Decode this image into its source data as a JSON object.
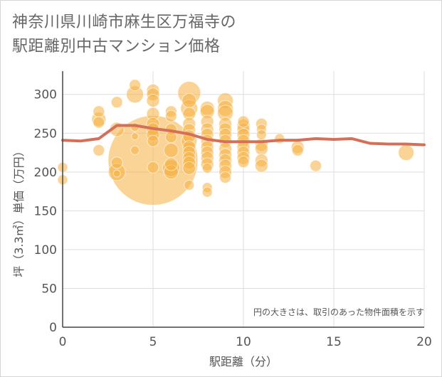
{
  "title_lines": [
    "神奈川県川崎市麻生区万福寺の",
    "駅距離別中古マンション価格"
  ],
  "chart_data": {
    "type": "scatter",
    "title": "神奈川県川崎市麻生区万福寺の駅距離別中古マンション価格",
    "xlabel": "駅距離（分）",
    "ylabel": "坪（3.3㎡）単価（万円）",
    "xlim": [
      0,
      20
    ],
    "ylim": [
      0,
      330
    ],
    "x_ticks": [
      0,
      5,
      10,
      15,
      20
    ],
    "y_ticks": [
      0,
      50,
      100,
      150,
      200,
      250,
      300
    ],
    "x_tick_labels": [
      "0",
      "5",
      "10",
      "15",
      "20"
    ],
    "y_tick_labels": [
      "0",
      "50",
      "100",
      "150",
      "200",
      "250",
      "300"
    ],
    "grid": true,
    "note": "円の大きさは、取引のあった物件面積を示す",
    "colors": {
      "bubble": "#f5b041",
      "line": "#d4705a",
      "grid": "#dddddd",
      "axis": "#444444"
    },
    "bubbles": [
      {
        "x": 0,
        "y": 206,
        "s": 7
      },
      {
        "x": 0,
        "y": 190,
        "s": 7
      },
      {
        "x": 2,
        "y": 278,
        "s": 8
      },
      {
        "x": 2,
        "y": 268,
        "s": 10
      },
      {
        "x": 2,
        "y": 264,
        "s": 8
      },
      {
        "x": 2,
        "y": 228,
        "s": 8
      },
      {
        "x": 3,
        "y": 290,
        "s": 8
      },
      {
        "x": 3,
        "y": 255,
        "s": 10
      },
      {
        "x": 3,
        "y": 212,
        "s": 8
      },
      {
        "x": 3,
        "y": 200,
        "s": 12
      },
      {
        "x": 3,
        "y": 198,
        "s": 5
      },
      {
        "x": 4,
        "y": 312,
        "s": 8
      },
      {
        "x": 4,
        "y": 300,
        "s": 12
      },
      {
        "x": 4,
        "y": 258,
        "s": 6
      },
      {
        "x": 4,
        "y": 246,
        "s": 5
      },
      {
        "x": 4,
        "y": 228,
        "s": 6
      },
      {
        "x": 5,
        "y": 305,
        "s": 9
      },
      {
        "x": 5,
        "y": 300,
        "s": 9
      },
      {
        "x": 5,
        "y": 292,
        "s": 9
      },
      {
        "x": 5,
        "y": 275,
        "s": 9
      },
      {
        "x": 5,
        "y": 262,
        "s": 9
      },
      {
        "x": 5,
        "y": 255,
        "s": 9
      },
      {
        "x": 5,
        "y": 248,
        "s": 9
      },
      {
        "x": 5,
        "y": 240,
        "s": 8
      },
      {
        "x": 5,
        "y": 206,
        "s": 8
      },
      {
        "x": 5,
        "y": 215,
        "s": 63
      },
      {
        "x": 6,
        "y": 278,
        "s": 8
      },
      {
        "x": 6,
        "y": 272,
        "s": 8
      },
      {
        "x": 6,
        "y": 255,
        "s": 8
      },
      {
        "x": 6,
        "y": 245,
        "s": 8
      },
      {
        "x": 6,
        "y": 228,
        "s": 10
      },
      {
        "x": 6,
        "y": 210,
        "s": 9
      },
      {
        "x": 6,
        "y": 205,
        "s": 12
      },
      {
        "x": 6,
        "y": 200,
        "s": 10
      },
      {
        "x": 7,
        "y": 302,
        "s": 16
      },
      {
        "x": 7,
        "y": 292,
        "s": 10
      },
      {
        "x": 7,
        "y": 282,
        "s": 12
      },
      {
        "x": 7,
        "y": 275,
        "s": 9
      },
      {
        "x": 7,
        "y": 262,
        "s": 9
      },
      {
        "x": 7,
        "y": 254,
        "s": 9
      },
      {
        "x": 7,
        "y": 246,
        "s": 9
      },
      {
        "x": 7,
        "y": 240,
        "s": 11
      },
      {
        "x": 7,
        "y": 232,
        "s": 9
      },
      {
        "x": 7,
        "y": 225,
        "s": 9
      },
      {
        "x": 7,
        "y": 218,
        "s": 9
      },
      {
        "x": 7,
        "y": 212,
        "s": 9
      },
      {
        "x": 7,
        "y": 205,
        "s": 9
      },
      {
        "x": 7,
        "y": 183,
        "s": 7
      },
      {
        "x": 8,
        "y": 282,
        "s": 10
      },
      {
        "x": 8,
        "y": 278,
        "s": 10
      },
      {
        "x": 8,
        "y": 265,
        "s": 9
      },
      {
        "x": 8,
        "y": 255,
        "s": 9
      },
      {
        "x": 8,
        "y": 248,
        "s": 9
      },
      {
        "x": 8,
        "y": 240,
        "s": 9
      },
      {
        "x": 8,
        "y": 232,
        "s": 9
      },
      {
        "x": 8,
        "y": 225,
        "s": 9
      },
      {
        "x": 8,
        "y": 218,
        "s": 9
      },
      {
        "x": 8,
        "y": 210,
        "s": 9
      },
      {
        "x": 8,
        "y": 205,
        "s": 7
      },
      {
        "x": 8,
        "y": 180,
        "s": 7
      },
      {
        "x": 8,
        "y": 174,
        "s": 7
      },
      {
        "x": 9,
        "y": 292,
        "s": 11
      },
      {
        "x": 9,
        "y": 282,
        "s": 11
      },
      {
        "x": 9,
        "y": 276,
        "s": 11
      },
      {
        "x": 9,
        "y": 262,
        "s": 9
      },
      {
        "x": 9,
        "y": 255,
        "s": 9
      },
      {
        "x": 9,
        "y": 248,
        "s": 9
      },
      {
        "x": 9,
        "y": 240,
        "s": 9
      },
      {
        "x": 9,
        "y": 230,
        "s": 9
      },
      {
        "x": 9,
        "y": 222,
        "s": 9
      },
      {
        "x": 9,
        "y": 215,
        "s": 9
      },
      {
        "x": 9,
        "y": 208,
        "s": 9
      },
      {
        "x": 9,
        "y": 200,
        "s": 9
      },
      {
        "x": 9,
        "y": 193,
        "s": 8
      },
      {
        "x": 10,
        "y": 265,
        "s": 8
      },
      {
        "x": 10,
        "y": 260,
        "s": 9
      },
      {
        "x": 10,
        "y": 255,
        "s": 9
      },
      {
        "x": 10,
        "y": 248,
        "s": 9
      },
      {
        "x": 10,
        "y": 240,
        "s": 9
      },
      {
        "x": 10,
        "y": 232,
        "s": 9
      },
      {
        "x": 10,
        "y": 225,
        "s": 9
      },
      {
        "x": 10,
        "y": 218,
        "s": 9
      },
      {
        "x": 10,
        "y": 213,
        "s": 8
      },
      {
        "x": 11,
        "y": 262,
        "s": 8
      },
      {
        "x": 11,
        "y": 255,
        "s": 7
      },
      {
        "x": 11,
        "y": 248,
        "s": 7
      },
      {
        "x": 11,
        "y": 235,
        "s": 9
      },
      {
        "x": 11,
        "y": 230,
        "s": 9
      },
      {
        "x": 11,
        "y": 215,
        "s": 9
      },
      {
        "x": 11,
        "y": 208,
        "s": 9
      },
      {
        "x": 12,
        "y": 243,
        "s": 7
      },
      {
        "x": 13,
        "y": 232,
        "s": 9
      },
      {
        "x": 13,
        "y": 228,
        "s": 8
      },
      {
        "x": 14,
        "y": 208,
        "s": 8
      },
      {
        "x": 19,
        "y": 225,
        "s": 11
      }
    ],
    "trend_line": {
      "x": [
        0,
        1,
        2,
        3,
        4,
        5,
        6,
        7,
        8,
        9,
        10,
        11,
        12,
        13,
        14,
        15,
        16,
        17,
        18,
        19,
        20
      ],
      "y": [
        241,
        240,
        243,
        260,
        260,
        256,
        253,
        249,
        242,
        239,
        239,
        239,
        241,
        241,
        243,
        242,
        243,
        237,
        236,
        236,
        235
      ]
    }
  }
}
